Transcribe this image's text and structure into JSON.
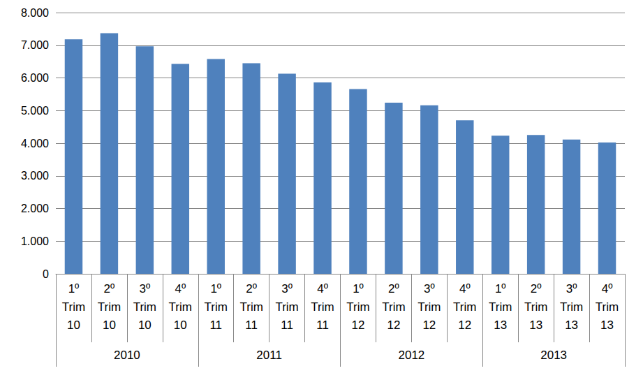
{
  "chart_data": {
    "type": "bar",
    "categories": [
      "1º Trim 10",
      "2º Trim 10",
      "3º Trim 10",
      "4º Trim 10",
      "1º Trim 11",
      "2º Trim 11",
      "3º Trim 11",
      "4º Trim 11",
      "1º Trim 12",
      "2º Trim 12",
      "3º Trim 12",
      "4º Trim 12",
      "1º Trim 13",
      "2º Trim 13",
      "3º Trim 13",
      "4º Trim 13"
    ],
    "x_groups": [
      "2010",
      "2011",
      "2012",
      "2013"
    ],
    "values": [
      7180,
      7370,
      6970,
      6430,
      6580,
      6450,
      6130,
      5860,
      5660,
      5240,
      5160,
      4700,
      4230,
      4250,
      4110,
      4020
    ],
    "color": "#4f81bd",
    "ylim": [
      0,
      8000
    ],
    "yticks": [
      0,
      {
        "value": 1000,
        "label": "1.000"
      },
      {
        "value": 2000,
        "label": "2.000"
      },
      {
        "value": 3000,
        "label": "3.000"
      },
      {
        "value": 4000,
        "label": "4.000"
      },
      {
        "value": 5000,
        "label": "5.000"
      },
      {
        "value": 6000,
        "label": "6.000"
      },
      {
        "value": 7000,
        "label": "7.000"
      },
      {
        "value": 8000,
        "label": "8.000"
      }
    ],
    "grid": true
  }
}
